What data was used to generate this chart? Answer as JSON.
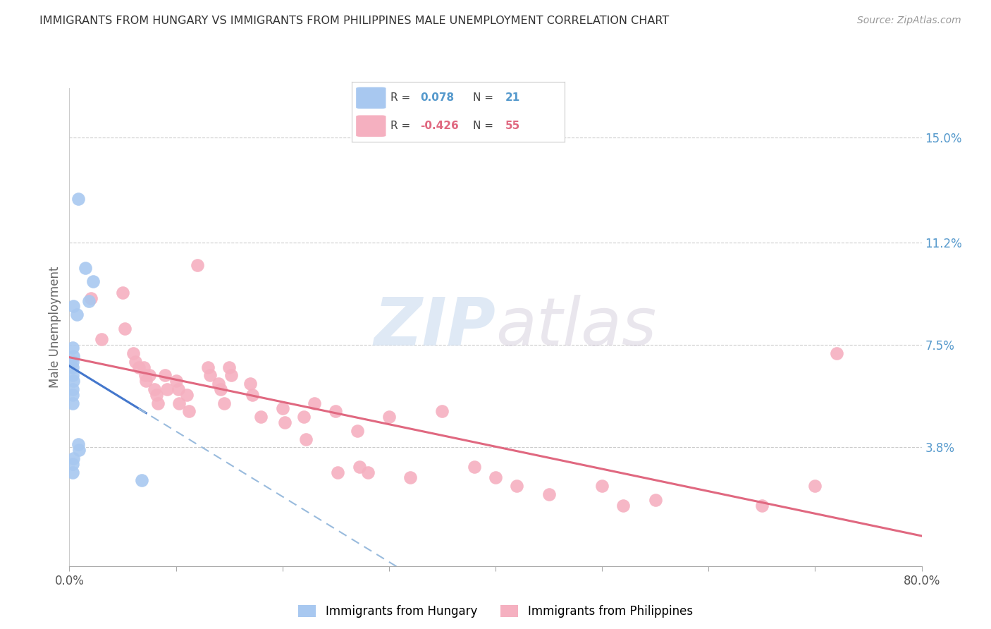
{
  "title": "IMMIGRANTS FROM HUNGARY VS IMMIGRANTS FROM PHILIPPINES MALE UNEMPLOYMENT CORRELATION CHART",
  "source": "Source: ZipAtlas.com",
  "ylabel": "Male Unemployment",
  "xlim": [
    0,
    0.8
  ],
  "ylim": [
    -0.005,
    0.168
  ],
  "yticks": [
    0.038,
    0.075,
    0.112,
    0.15
  ],
  "ytick_labels": [
    "3.8%",
    "7.5%",
    "11.2%",
    "15.0%"
  ],
  "hungary_color": "#a8c8f0",
  "philippines_color": "#f5b0c0",
  "hungary_line_color": "#4477cc",
  "hungary_dash_color": "#99bbdd",
  "philippines_line_color": "#e06880",
  "hungary_R": "0.078",
  "hungary_N": "21",
  "philippines_R": "-0.426",
  "philippines_N": "55",
  "legend_hungary_label": "Immigrants from Hungary",
  "legend_philippines_label": "Immigrants from Philippines",
  "hungary_x": [
    0.008,
    0.015,
    0.022,
    0.018,
    0.004,
    0.007,
    0.003,
    0.004,
    0.003,
    0.003,
    0.003,
    0.004,
    0.003,
    0.003,
    0.003,
    0.008,
    0.009,
    0.004,
    0.003,
    0.003,
    0.068
  ],
  "hungary_y": [
    0.128,
    0.103,
    0.098,
    0.091,
    0.089,
    0.086,
    0.074,
    0.071,
    0.069,
    0.067,
    0.064,
    0.062,
    0.059,
    0.057,
    0.054,
    0.039,
    0.037,
    0.034,
    0.032,
    0.029,
    0.026
  ],
  "philippines_x": [
    0.02,
    0.03,
    0.05,
    0.052,
    0.06,
    0.062,
    0.065,
    0.07,
    0.071,
    0.072,
    0.075,
    0.08,
    0.082,
    0.083,
    0.09,
    0.092,
    0.1,
    0.102,
    0.103,
    0.11,
    0.112,
    0.12,
    0.13,
    0.132,
    0.14,
    0.142,
    0.145,
    0.15,
    0.152,
    0.17,
    0.172,
    0.18,
    0.2,
    0.202,
    0.22,
    0.222,
    0.23,
    0.25,
    0.252,
    0.27,
    0.272,
    0.28,
    0.3,
    0.32,
    0.35,
    0.38,
    0.4,
    0.42,
    0.45,
    0.5,
    0.52,
    0.55,
    0.65,
    0.7,
    0.72
  ],
  "philippines_y": [
    0.092,
    0.077,
    0.094,
    0.081,
    0.072,
    0.069,
    0.067,
    0.067,
    0.064,
    0.062,
    0.064,
    0.059,
    0.057,
    0.054,
    0.064,
    0.059,
    0.062,
    0.059,
    0.054,
    0.057,
    0.051,
    0.104,
    0.067,
    0.064,
    0.061,
    0.059,
    0.054,
    0.067,
    0.064,
    0.061,
    0.057,
    0.049,
    0.052,
    0.047,
    0.049,
    0.041,
    0.054,
    0.051,
    0.029,
    0.044,
    0.031,
    0.029,
    0.049,
    0.027,
    0.051,
    0.031,
    0.027,
    0.024,
    0.021,
    0.024,
    0.017,
    0.019,
    0.017,
    0.024,
    0.072
  ],
  "watermark_zip": "ZIP",
  "watermark_atlas": "atlas",
  "background_color": "#ffffff",
  "grid_color": "#cccccc",
  "title_color": "#333333",
  "axis_label_color": "#666666",
  "right_tick_color": "#5599cc",
  "source_color": "#999999"
}
